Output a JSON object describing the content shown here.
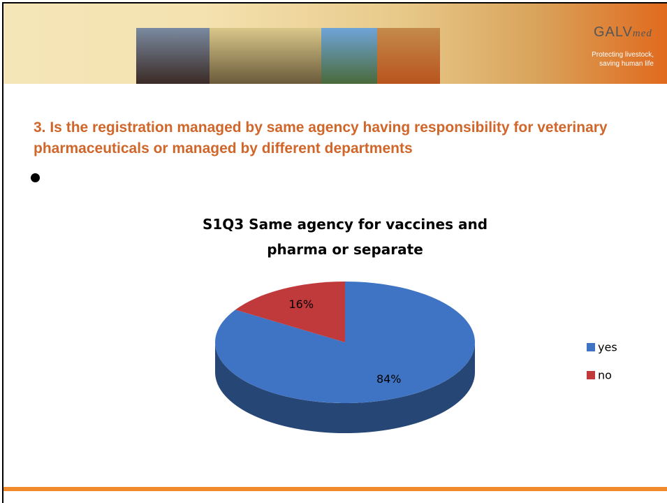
{
  "header": {
    "logo_main": "GALV",
    "logo_sub": "med",
    "tagline": [
      "Protecting livestock,",
      "saving human life"
    ]
  },
  "slide": {
    "title": "3. Is the registration managed by same agency having responsibility for veterinary pharmaceuticals or managed by different departments"
  },
  "chart_data": {
    "type": "pie",
    "title": "S1Q3 Same agency for vaccines and pharma or separate",
    "categories": [
      "yes",
      "no"
    ],
    "values": [
      84,
      16
    ],
    "value_labels": [
      "84%",
      "16%"
    ],
    "colors": [
      "#3f74c4",
      "#c0393b"
    ],
    "legend": "right"
  }
}
